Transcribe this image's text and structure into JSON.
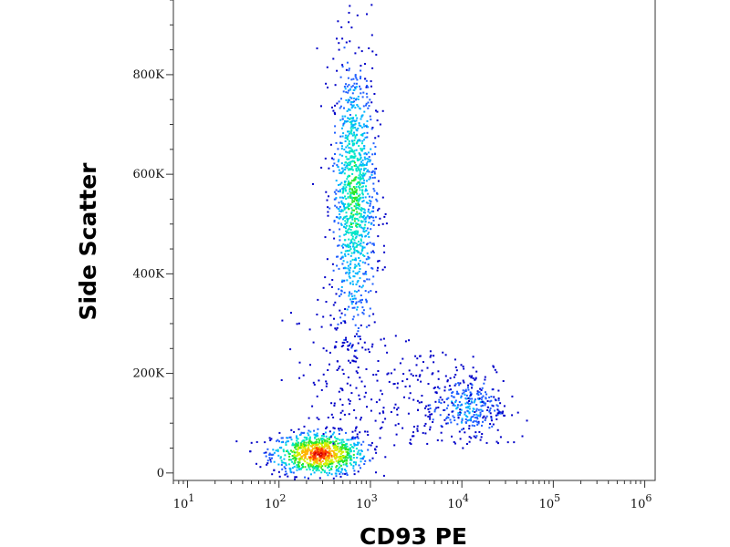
{
  "chart_data": {
    "type": "scatter",
    "plot_style": "density-colored flow cytometry dot plot",
    "xlabel": "CD93 PE",
    "ylabel": "Side Scatter",
    "x_scale": "log",
    "xlim": [
      7,
      1300000
    ],
    "ylim": [
      -15000,
      950000
    ],
    "x_ticks": [
      {
        "base": "10",
        "exp": "1",
        "value": 10
      },
      {
        "base": "10",
        "exp": "2",
        "value": 100
      },
      {
        "base": "10",
        "exp": "3",
        "value": 1000
      },
      {
        "base": "10",
        "exp": "4",
        "value": 10000
      },
      {
        "base": "10",
        "exp": "5",
        "value": 100000
      },
      {
        "base": "10",
        "exp": "6",
        "value": 1000000
      }
    ],
    "y_ticks": [
      {
        "label": "0",
        "value": 0
      },
      {
        "label": "200K",
        "value": 200000
      },
      {
        "label": "400K",
        "value": 400000
      },
      {
        "label": "600K",
        "value": 600000
      },
      {
        "label": "800K",
        "value": 800000
      }
    ],
    "populations": [
      {
        "x_center": 270,
        "y_center": 40000,
        "x_log_spread": 0.26,
        "y_spread": 22000,
        "event_share": 0.34,
        "peak_density": "red"
      },
      {
        "x_center": 650,
        "y_center": 560000,
        "x_log_spread": 0.12,
        "y_spread": 140000,
        "event_share": 0.44,
        "peak_density": "green"
      },
      {
        "x_center": 11000,
        "y_center": 135000,
        "x_log_spread": 0.2,
        "y_spread": 28000,
        "event_share": 0.1,
        "peak_density": "cyan"
      }
    ],
    "density_colors": [
      "#0000c8",
      "#1f5fff",
      "#00b4ff",
      "#00e6c8",
      "#28e628",
      "#d2f000",
      "#ffb400",
      "#ff3c00",
      "#d20000"
    ],
    "grid": false,
    "legend": "none"
  }
}
